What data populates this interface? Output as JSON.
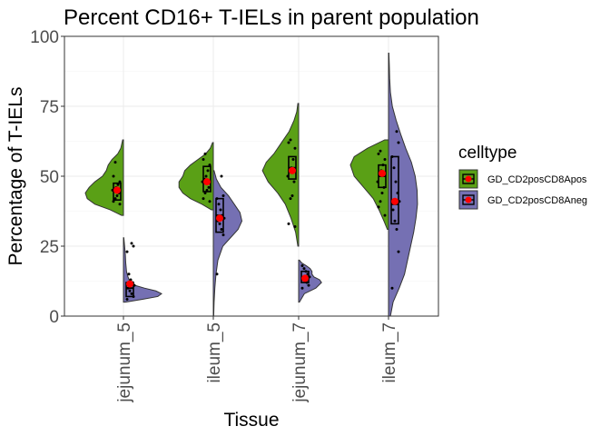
{
  "chart_data": {
    "type": "split-violin",
    "title": "Percent CD16+ T-IELs in parent population",
    "xlabel": "Tissue",
    "ylabel": "Percentage of T-IELs",
    "ylim": [
      0,
      100
    ],
    "yticks": [
      0,
      25,
      50,
      75,
      100
    ],
    "categories": [
      "jejunum_5",
      "ileum_5",
      "jejunum_7",
      "ileum_7"
    ],
    "grid": true,
    "legend": {
      "title": "celltype",
      "placement": "right",
      "entries": [
        {
          "name": "GD_CD2posCD8Apos",
          "color": "#5aa016"
        },
        {
          "name": "GD_CD2posCD8Aneg",
          "color": "#7570b3"
        }
      ]
    },
    "mean_color": "#ff0000",
    "series": [
      {
        "name": "GD_CD2posCD8Apos",
        "side": "left",
        "color": "#5aa016",
        "groups": [
          {
            "range": [
              36,
              63
            ],
            "density": [
              [
                36,
                0.05
              ],
              [
                38,
                0.35
              ],
              [
                40,
                0.75
              ],
              [
                42,
                0.95
              ],
              [
                44,
                1.0
              ],
              [
                46,
                0.9
              ],
              [
                48,
                0.75
              ],
              [
                50,
                0.55
              ],
              [
                52,
                0.45
              ],
              [
                54,
                0.4
              ],
              [
                56,
                0.3
              ],
              [
                58,
                0.15
              ],
              [
                60,
                0.07
              ],
              [
                63,
                0.02
              ]
            ],
            "box": {
              "q1": 41.5,
              "median": 44.5,
              "q3": 47.5
            },
            "mean": 45,
            "points": [
              40,
              41,
              42,
              43,
              44,
              45,
              45.5,
              46,
              47,
              48,
              50,
              55
            ]
          },
          {
            "range": [
              38,
              62
            ],
            "density": [
              [
                38,
                0.05
              ],
              [
                40,
                0.3
              ],
              [
                42,
                0.6
              ],
              [
                44,
                0.8
              ],
              [
                46,
                0.9
              ],
              [
                48,
                0.9
              ],
              [
                50,
                0.8
              ],
              [
                52,
                0.75
              ],
              [
                54,
                0.6
              ],
              [
                56,
                0.4
              ],
              [
                58,
                0.2
              ],
              [
                60,
                0.08
              ],
              [
                62,
                0.02
              ]
            ],
            "box": {
              "q1": 44.5,
              "median": 47.5,
              "q3": 53.5
            },
            "mean": 48,
            "points": [
              41,
              42,
              44,
              45,
              46,
              48,
              49,
              50,
              52,
              54,
              56,
              58
            ]
          },
          {
            "range": [
              25,
              76
            ],
            "density": [
              [
                25,
                0.02
              ],
              [
                30,
                0.08
              ],
              [
                35,
                0.2
              ],
              [
                40,
                0.35
              ],
              [
                44,
                0.55
              ],
              [
                48,
                0.8
              ],
              [
                52,
                0.95
              ],
              [
                55,
                0.85
              ],
              [
                58,
                0.65
              ],
              [
                62,
                0.45
              ],
              [
                66,
                0.25
              ],
              [
                70,
                0.12
              ],
              [
                73,
                0.05
              ],
              [
                76,
                0.02
              ]
            ],
            "box": {
              "q1": 49,
              "median": 53,
              "q3": 57
            },
            "mean": 52,
            "points": [
              32,
              33,
              42,
              43,
              48,
              50,
              52,
              53,
              56,
              60,
              62,
              63
            ]
          },
          {
            "range": [
              31,
              63
            ],
            "density": [
              [
                31,
                0.03
              ],
              [
                34,
                0.12
              ],
              [
                38,
                0.25
              ],
              [
                42,
                0.4
              ],
              [
                46,
                0.65
              ],
              [
                50,
                0.9
              ],
              [
                54,
                1.0
              ],
              [
                57,
                0.9
              ],
              [
                60,
                0.55
              ],
              [
                63,
                0.1
              ]
            ],
            "box": {
              "q1": 46,
              "median": 50,
              "q3": 54
            },
            "mean": 51,
            "points": [
              36,
              39,
              41,
              44,
              46,
              48,
              51,
              52,
              54,
              56,
              58,
              59
            ]
          }
        ]
      },
      {
        "name": "GD_CD2posCD8Aneg",
        "side": "right",
        "color": "#7570b3",
        "groups": [
          {
            "range": [
              5,
              28
            ],
            "density": [
              [
                5,
                0.05
              ],
              [
                6,
                0.5
              ],
              [
                7,
                0.9
              ],
              [
                8,
                1.0
              ],
              [
                9,
                0.85
              ],
              [
                10,
                0.55
              ],
              [
                11,
                0.3
              ],
              [
                12,
                0.18
              ],
              [
                14,
                0.12
              ],
              [
                16,
                0.08
              ],
              [
                19,
                0.06
              ],
              [
                22,
                0.05
              ],
              [
                25,
                0.03
              ],
              [
                28,
                0.01
              ]
            ],
            "box": {
              "q1": 7,
              "median": 10,
              "q3": 12
            },
            "mean": 11.5,
            "points": [
              6,
              7,
              8,
              9,
              10,
              11,
              12,
              13,
              15,
              23,
              25,
              26
            ]
          },
          {
            "range": [
              0,
              52
            ],
            "density": [
              [
                0,
                0.01
              ],
              [
                5,
                0.02
              ],
              [
                10,
                0.04
              ],
              [
                15,
                0.07
              ],
              [
                20,
                0.12
              ],
              [
                25,
                0.25
              ],
              [
                28,
                0.45
              ],
              [
                31,
                0.65
              ],
              [
                34,
                0.75
              ],
              [
                37,
                0.7
              ],
              [
                40,
                0.55
              ],
              [
                43,
                0.4
              ],
              [
                46,
                0.2
              ],
              [
                49,
                0.08
              ],
              [
                52,
                0.02
              ]
            ],
            "box": {
              "q1": 30,
              "median": 36,
              "q3": 42
            },
            "mean": 35,
            "points": [
              15,
              29,
              31,
              33,
              34,
              35,
              36,
              38,
              40,
              42,
              43,
              50
            ]
          },
          {
            "range": [
              5,
              20
            ],
            "density": [
              [
                5,
                0.02
              ],
              [
                8,
                0.15
              ],
              [
                10,
                0.45
              ],
              [
                12,
                0.6
              ],
              [
                13,
                0.55
              ],
              [
                14,
                0.4
              ],
              [
                15,
                0.35
              ],
              [
                16,
                0.35
              ],
              [
                17,
                0.3
              ],
              [
                18,
                0.2
              ],
              [
                19,
                0.08
              ],
              [
                20,
                0.02
              ]
            ],
            "box": {
              "q1": 12,
              "median": 14,
              "q3": 16
            },
            "mean": 13.5,
            "points": [
              10,
              11,
              12,
              12.5,
              13,
              14,
              15,
              16,
              17,
              18
            ]
          },
          {
            "range": [
              0,
              94
            ],
            "density": [
              [
                0,
                0.05
              ],
              [
                5,
                0.12
              ],
              [
                10,
                0.28
              ],
              [
                15,
                0.42
              ],
              [
                20,
                0.5
              ],
              [
                25,
                0.58
              ],
              [
                30,
                0.66
              ],
              [
                35,
                0.72
              ],
              [
                40,
                0.76
              ],
              [
                45,
                0.75
              ],
              [
                50,
                0.7
              ],
              [
                55,
                0.6
              ],
              [
                60,
                0.45
              ],
              [
                65,
                0.32
              ],
              [
                70,
                0.2
              ],
              [
                75,
                0.1
              ],
              [
                80,
                0.05
              ],
              [
                85,
                0.03
              ],
              [
                90,
                0.02
              ],
              [
                94,
                0.01
              ]
            ],
            "box": {
              "q1": 33,
              "median": 40,
              "q3": 57
            },
            "mean": 41,
            "points": [
              10,
              23,
              31,
              34,
              38,
              41,
              44,
              48,
              53,
              57,
              62,
              66
            ]
          }
        ]
      }
    ]
  }
}
